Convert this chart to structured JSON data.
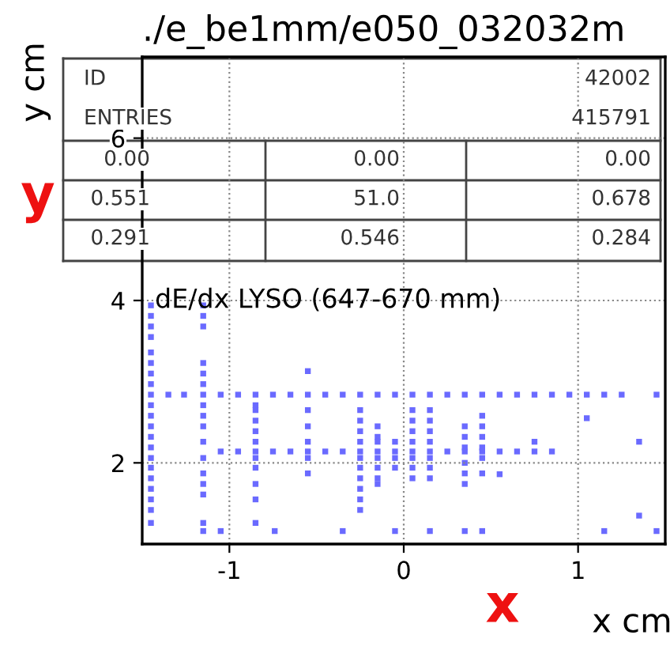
{
  "chart_data": {
    "type": "scatter",
    "title": "./e_be1mm/e050_032032m",
    "xlabel": "x cm",
    "ylabel": "y cm",
    "xlim": [
      -1.5,
      1.5
    ],
    "xticks": [
      -1,
      0,
      1
    ],
    "ylim": [
      1,
      7
    ],
    "yticks": [
      2,
      4,
      6
    ],
    "grid": true,
    "marker": "square",
    "annotations": [
      "ID",
      "42002",
      "ENTRIES",
      "415791",
      "0.00",
      "0.00",
      "0.00",
      "0.551",
      "51.0",
      "0.678",
      "0.291",
      "0.546",
      "0.284",
      "dE/dx LYSO (647-670 mm)",
      "x",
      "y"
    ],
    "series": [
      {
        "color": "#6a6aff",
        "x": [
          -1.45,
          -1.35,
          -1.26,
          -1.15,
          -1.05,
          -0.95,
          -0.85,
          -0.75,
          -0.65,
          -0.55,
          -0.45,
          -0.35,
          -0.25,
          -0.15,
          -0.05,
          0.05,
          0.15,
          0.25,
          0.35,
          0.45,
          0.55,
          0.65,
          0.75,
          0.85,
          0.95,
          1.05,
          1.15,
          1.25,
          1.45
        ],
        "values": [
          2.84,
          2.84,
          2.84,
          2.84,
          2.84,
          2.84,
          2.84,
          2.84,
          2.84,
          2.84,
          2.84,
          2.84,
          2.84,
          2.84,
          2.84,
          2.84,
          2.84,
          2.84,
          2.84,
          2.84,
          2.84,
          2.84,
          2.84,
          2.84,
          2.84,
          2.84,
          2.84,
          2.84,
          2.84
        ]
      },
      {
        "color": "#6a6aff",
        "x": [
          -1.05,
          -0.95,
          -0.85,
          -0.75,
          -0.65,
          -0.55,
          -0.45,
          -0.35,
          -0.25,
          -0.15,
          -0.05,
          0.05,
          0.15,
          0.25,
          0.35,
          0.45,
          0.55,
          0.65,
          0.75,
          0.85
        ],
        "values": [
          2.14,
          2.14,
          2.14,
          2.14,
          2.14,
          2.14,
          2.14,
          2.14,
          2.14,
          2.14,
          2.14,
          2.14,
          2.14,
          2.14,
          2.14,
          2.14,
          2.14,
          2.14,
          2.14,
          2.14
        ]
      },
      {
        "color": "#6a6aff",
        "x": [
          -1.45,
          -1.45,
          -1.45,
          -1.45,
          -1.45,
          -1.45,
          -1.45,
          -1.45,
          -1.45,
          -1.45,
          -1.45,
          -1.45,
          -1.45,
          -1.45,
          -1.45,
          -1.45,
          -1.45,
          -1.45,
          -1.45,
          -1.45
        ],
        "values": [
          3.94,
          3.81,
          3.68,
          3.55,
          3.36,
          3.23,
          3.1,
          2.97,
          2.71,
          2.58,
          2.45,
          2.32,
          2.19,
          2.06,
          1.94,
          1.81,
          1.68,
          1.55,
          1.42,
          1.26
        ]
      },
      {
        "color": "#6a6aff",
        "x": [
          -1.15,
          -1.15,
          -1.15,
          -1.15,
          -1.15,
          -1.15,
          -1.15,
          -1.15,
          -1.15,
          -1.15,
          -1.15,
          -1.15,
          -1.15,
          -1.15,
          -1.15
        ],
        "values": [
          3.94,
          3.81,
          3.68,
          3.23,
          3.1,
          2.97,
          2.71,
          2.58,
          2.45,
          2.26,
          2.06,
          1.87,
          1.74,
          1.61,
          1.26
        ]
      },
      {
        "color": "#6a6aff",
        "x": [
          -0.85,
          -0.85,
          -0.85,
          -0.85,
          -0.85,
          -0.85,
          -0.85,
          -0.85,
          -0.85,
          -0.85
        ],
        "values": [
          2.71,
          2.65,
          2.52,
          2.39,
          2.26,
          2.06,
          1.94,
          1.74,
          1.55,
          1.26
        ]
      },
      {
        "color": "#6a6aff",
        "x": [
          -0.55,
          -0.55,
          -0.55,
          -0.55,
          -0.55,
          -0.55
        ],
        "values": [
          3.13,
          2.65,
          2.45,
          2.26,
          2.06,
          1.87
        ]
      },
      {
        "color": "#6a6aff",
        "x": [
          -0.25,
          -0.25,
          -0.25,
          -0.25,
          -0.25,
          -0.25,
          -0.25,
          -0.25,
          -0.25,
          -0.25
        ],
        "values": [
          2.65,
          2.52,
          2.39,
          2.26,
          2.06,
          1.94,
          1.81,
          1.68,
          1.55,
          1.42
        ]
      },
      {
        "color": "#6a6aff",
        "x": [
          -0.15,
          -0.15,
          -0.15,
          -0.15,
          -0.15,
          -0.15,
          -0.15
        ],
        "values": [
          2.45,
          2.32,
          2.26,
          2.06,
          1.94,
          1.81,
          1.74
        ]
      },
      {
        "color": "#6a6aff",
        "x": [
          -0.05,
          -0.05,
          -0.05,
          -0.05
        ],
        "values": [
          2.26,
          2.06,
          1.94,
          1.16
        ]
      },
      {
        "color": "#6a6aff",
        "x": [
          0.05,
          0.05,
          0.05,
          0.05,
          0.05,
          0.05,
          0.05
        ],
        "values": [
          2.65,
          2.52,
          2.39,
          2.26,
          2.06,
          1.94,
          1.81
        ]
      },
      {
        "color": "#6a6aff",
        "x": [
          0.15,
          0.15,
          0.15,
          0.15,
          0.15,
          0.15,
          0.15,
          0.15
        ],
        "values": [
          2.65,
          2.52,
          2.39,
          2.26,
          2.06,
          1.94,
          1.81,
          1.16
        ]
      },
      {
        "color": "#6a6aff",
        "x": [
          0.35,
          0.35,
          0.35,
          0.35,
          0.35,
          0.35,
          0.35
        ],
        "values": [
          2.45,
          2.32,
          2.19,
          2.0,
          1.87,
          1.74,
          1.16
        ]
      },
      {
        "color": "#6a6aff",
        "x": [
          0.45,
          0.45,
          0.45,
          0.45,
          0.45,
          0.45,
          0.45
        ],
        "values": [
          2.58,
          2.45,
          2.32,
          2.19,
          2.06,
          1.87,
          1.16
        ]
      },
      {
        "color": "#6a6aff",
        "x": [
          -1.15,
          -1.05,
          -0.74,
          -0.35,
          1.15,
          1.45
        ],
        "values": [
          1.16,
          1.16,
          1.16,
          1.16,
          1.16,
          1.16
        ]
      },
      {
        "color": "#6a6aff",
        "x": [
          1.05,
          1.35,
          1.35,
          0.75,
          0.55
        ],
        "values": [
          2.55,
          2.26,
          1.35,
          2.26,
          1.86
        ]
      }
    ]
  }
}
